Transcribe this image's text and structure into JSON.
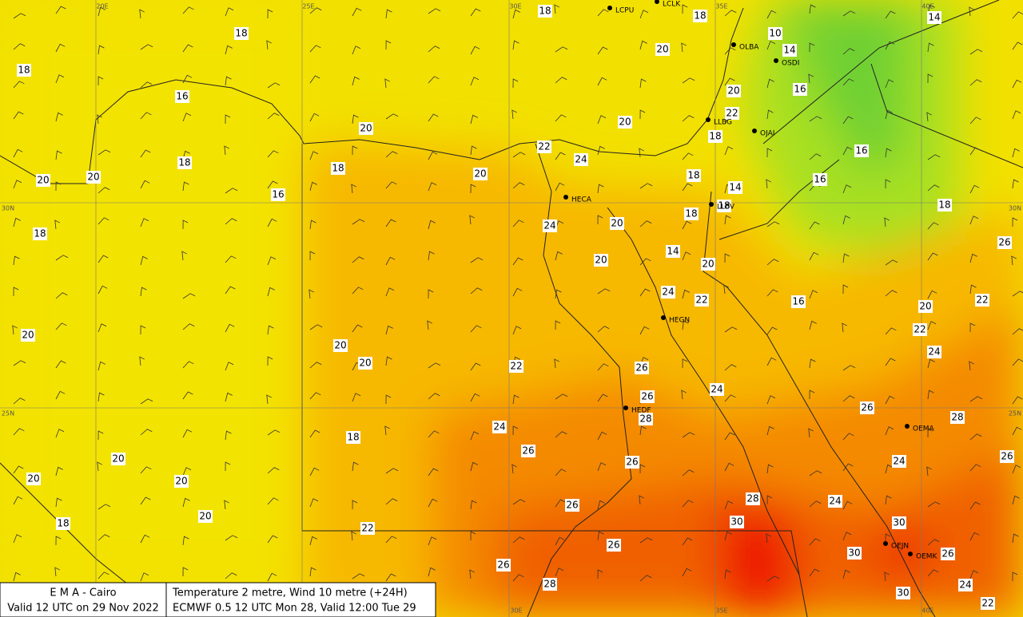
{
  "temperature_labels": [
    18,
    18,
    18,
    20,
    10,
    14,
    14,
    18,
    16,
    16,
    20,
    22,
    20,
    20,
    22,
    18,
    16,
    24,
    18,
    20,
    18,
    20,
    20,
    18,
    14,
    16,
    16,
    18,
    18,
    18,
    20,
    24,
    18,
    26,
    14,
    20,
    20,
    24,
    22,
    16,
    22,
    20,
    20,
    20,
    22,
    24,
    20,
    22,
    26,
    24,
    26,
    28,
    26,
    28,
    24,
    18,
    26,
    20,
    26,
    24,
    20,
    26,
    20,
    28,
    26,
    20,
    24,
    30,
    30,
    18,
    22,
    26,
    30,
    26,
    26,
    28,
    24,
    30,
    22
  ],
  "stations": [
    "LCPU",
    "LCLK",
    "OLBA",
    "OSDI",
    "LLBG",
    "OJAI",
    "HECA",
    "LLBV",
    "HEGN",
    "HEDF",
    "OEMA",
    "OEJN",
    "OEMK"
  ],
  "grid_labels": [
    "20E",
    "25E",
    "30E",
    "35E",
    "40E",
    "30N",
    "30N",
    "25N",
    "25N",
    "30E",
    "35E",
    "40E"
  ],
  "footer": {
    "left": [
      "E M A  -  Cairo",
      "Valid 12 UTC on 29 Nov 2022"
    ],
    "right": [
      "Temperature  2 metre, Wind  10 metre (+24H)",
      "ECMWF 0.5 12 UTC Mon 28, Valid 12:00 Tue 29"
    ]
  }
}
